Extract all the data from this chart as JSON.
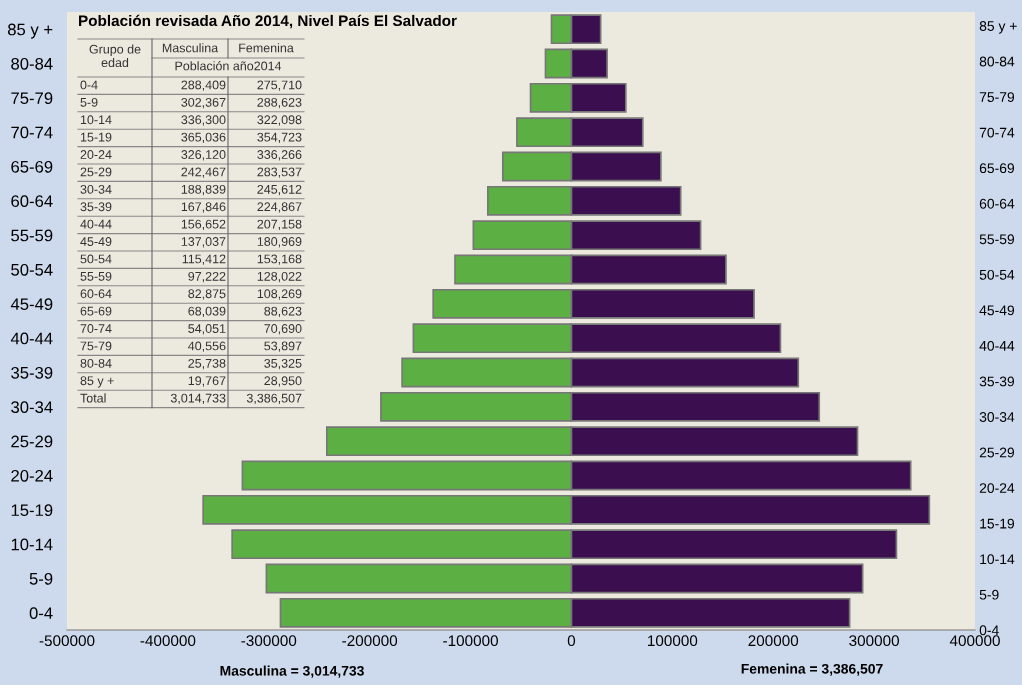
{
  "chart_data": {
    "type": "bar",
    "orientation": "horizontal",
    "stacked": true,
    "categories": [
      "85 y +",
      "80-84",
      "75-79",
      "70-74",
      "65-69",
      "60-64",
      "55-59",
      "50-54",
      "45-49",
      "40-44",
      "35-39",
      "30-34",
      "25-29",
      "20-24",
      "15-19",
      "10-14",
      "5-9",
      "0-4"
    ],
    "series": [
      {
        "color": "#5cb043",
        "values": [
          -19767,
          -25738,
          -40556,
          -54051,
          -68039,
          -82875,
          -97222,
          -115412,
          -137037,
          -156652,
          -167846,
          -188839,
          -242467,
          -326120,
          -365036,
          -336300,
          -302367,
          -288409
        ]
      },
      {
        "color": "#3b0f4f",
        "values": [
          28950,
          35325,
          53897,
          70690,
          88623,
          108269,
          128022,
          153168,
          180969,
          207158,
          224867,
          245612,
          283537,
          336266,
          354723,
          322098,
          288623,
          275710
        ]
      }
    ],
    "xlim": [
      -500000,
      400000
    ],
    "xticks": [
      -500000,
      -400000,
      -300000,
      -200000,
      -100000,
      0,
      100000,
      200000,
      300000,
      400000
    ],
    "grid": false,
    "legend": false,
    "annotations": [
      "Población revisada Año 2014, Nivel País El Salvador",
      "Grupo de edad",
      "Población año2014",
      "Total",
      "3,014,733",
      "3,386,507",
      "Masculina = 3,014,733",
      "Femenina = 3,386,507",
      "Masculina",
      "Femenina",
      "288,409",
      "275,710",
      "302,367",
      "288,623",
      "336,300",
      "322,098",
      "365,036",
      "354,723",
      "326,120",
      "336,266",
      "242,467",
      "283,537",
      "188,839",
      "245,612",
      "167,846",
      "224,867",
      "156,652",
      "207,158",
      "137,037",
      "180,969",
      "115,412",
      "153,168",
      "97,222",
      "128,022",
      "82,875",
      "108,269",
      "68,039",
      "88,623",
      "54,051",
      "70,690",
      "40,556",
      "53,897",
      "25,738",
      "35,325",
      "19,767",
      "28,950"
    ]
  }
}
